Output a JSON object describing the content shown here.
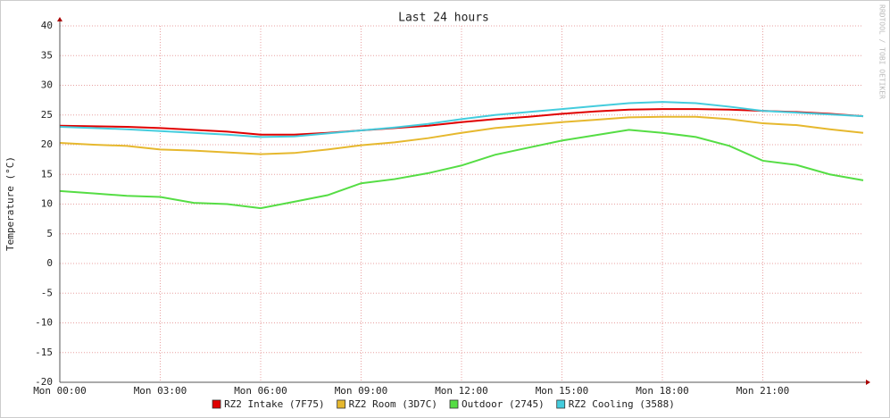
{
  "chart_data": {
    "type": "line",
    "title": "Last 24 hours",
    "y_label": "Temperature (°C)",
    "watermark": "RRDTOOL / TOBI OETIKER",
    "x": [
      0,
      1,
      2,
      3,
      4,
      5,
      6,
      7,
      8,
      9,
      10,
      11,
      12,
      13,
      14,
      15,
      16,
      17,
      18,
      19,
      20,
      21,
      22,
      23,
      24
    ],
    "xlim": [
      0,
      24
    ],
    "xticks": [
      {
        "value": 0,
        "label": "Mon 00:00"
      },
      {
        "value": 3,
        "label": "Mon 03:00"
      },
      {
        "value": 6,
        "label": "Mon 06:00"
      },
      {
        "value": 9,
        "label": "Mon 09:00"
      },
      {
        "value": 12,
        "label": "Mon 12:00"
      },
      {
        "value": 15,
        "label": "Mon 15:00"
      },
      {
        "value": 18,
        "label": "Mon 18:00"
      },
      {
        "value": 21,
        "label": "Mon 21:00"
      }
    ],
    "ylim": [
      -20,
      40
    ],
    "yticks": [
      -20,
      -15,
      -10,
      -5,
      0,
      5,
      10,
      15,
      20,
      25,
      30,
      35,
      40
    ],
    "grid": true,
    "legend": "bottom",
    "series": [
      {
        "name": "RZ2 Intake (7F75)",
        "color": "#e00000",
        "values": [
          23.2,
          23.1,
          23.0,
          22.8,
          22.5,
          22.2,
          21.7,
          21.7,
          22.0,
          22.4,
          22.8,
          23.2,
          23.8,
          24.3,
          24.7,
          25.2,
          25.6,
          25.9,
          26.0,
          26.0,
          25.9,
          25.7,
          25.5,
          25.2,
          24.8
        ]
      },
      {
        "name": "RZ2 Room (3D7C)",
        "color": "#e6b82e",
        "values": [
          20.3,
          20.0,
          19.8,
          19.2,
          19.0,
          18.7,
          18.4,
          18.6,
          19.2,
          19.9,
          20.4,
          21.1,
          22.0,
          22.8,
          23.3,
          23.8,
          24.2,
          24.6,
          24.7,
          24.7,
          24.3,
          23.6,
          23.3,
          22.6,
          22.0
        ]
      },
      {
        "name": "Outdoor (2745)",
        "color": "#55dd44",
        "values": [
          12.2,
          11.8,
          11.4,
          11.2,
          10.2,
          10.0,
          9.3,
          10.4,
          11.5,
          13.5,
          14.2,
          15.2,
          16.5,
          18.3,
          19.5,
          20.7,
          21.6,
          22.5,
          22.0,
          21.3,
          19.8,
          17.3,
          16.6,
          15.0,
          14.0
        ]
      },
      {
        "name": "RZ2 Cooling (3588)",
        "color": "#44ccdd",
        "values": [
          23.0,
          22.8,
          22.6,
          22.3,
          22.0,
          21.7,
          21.3,
          21.4,
          21.9,
          22.4,
          22.9,
          23.5,
          24.3,
          25.0,
          25.5,
          26.0,
          26.5,
          27.0,
          27.2,
          27.0,
          26.4,
          25.7,
          25.4,
          25.1,
          24.8
        ]
      }
    ]
  }
}
